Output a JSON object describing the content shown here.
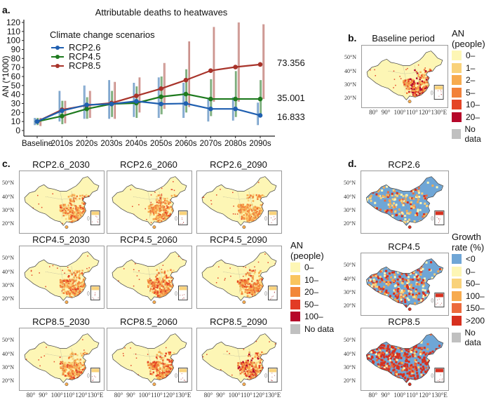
{
  "panels": {
    "a": {
      "letter": "a.",
      "end_labels": [
        "73.356",
        "35.001",
        "16.833"
      ]
    },
    "b": {
      "letter": "b.",
      "title": "Baseline period",
      "legend_title_1": "AN",
      "legend_title_2": "(people)",
      "legend": [
        {
          "label": "0–",
          "color": "#fdf6b5"
        },
        {
          "label": "1–",
          "color": "#f9d27a"
        },
        {
          "label": "2–",
          "color": "#f7ab4f"
        },
        {
          "label": "5–",
          "color": "#f2813a"
        },
        {
          "label": "10–",
          "color": "#e44526"
        },
        {
          "label": "20–",
          "color": "#b6072a"
        },
        {
          "label": "No data",
          "color": "#c0c0c0"
        }
      ]
    },
    "c": {
      "letter": "c.",
      "maps": [
        {
          "title": "RCP2.6_2030",
          "intensity": 0.55
        },
        {
          "title": "RCP2.6_2060",
          "intensity": 0.55
        },
        {
          "title": "RCP2.6_2090",
          "intensity": 0.5
        },
        {
          "title": "RCP4.5_2030",
          "intensity": 0.6
        },
        {
          "title": "RCP4.5_2060",
          "intensity": 0.65
        },
        {
          "title": "RCP4.5_2090",
          "intensity": 0.65
        },
        {
          "title": "RCP8.5_2030",
          "intensity": 0.6
        },
        {
          "title": "RCP8.5_2060",
          "intensity": 0.7
        },
        {
          "title": "RCP8.5_2090",
          "intensity": 0.8
        }
      ],
      "legend_title_1": "AN",
      "legend_title_2": "(people)",
      "legend": [
        {
          "label": "0–",
          "color": "#fdf6b5"
        },
        {
          "label": "10–",
          "color": "#f9c55f"
        },
        {
          "label": "20–",
          "color": "#f2873a"
        },
        {
          "label": "50–",
          "color": "#e23b25"
        },
        {
          "label": "100–",
          "color": "#b6072a"
        },
        {
          "label": "No data",
          "color": "#c0c0c0"
        }
      ]
    },
    "d": {
      "letter": "d.",
      "maps": [
        {
          "title": "RCP2.6",
          "red_share": 0.2
        },
        {
          "title": "RCP4.5",
          "red_share": 0.45
        },
        {
          "title": "RCP8.5",
          "red_share": 0.7
        }
      ],
      "legend_title_1": "Growth",
      "legend_title_2": "rate (%)",
      "legend": [
        {
          "label": "<0",
          "color": "#6fa6d6"
        },
        {
          "label": "0–",
          "color": "#fdf6b5"
        },
        {
          "label": "50–",
          "color": "#f9d27a"
        },
        {
          "label": "100–",
          "color": "#f7ab4f"
        },
        {
          "label": "150–",
          "color": "#ec6a3c"
        },
        {
          "label": ">200",
          "color": "#d7301f"
        },
        {
          "label": "No data",
          "color": "#c0c0c0"
        }
      ]
    },
    "map_axes": {
      "lat_ticks": [
        "50°N",
        "40°N",
        "30°N",
        "20°N"
      ],
      "lon_ticks": [
        "80°",
        "90°",
        "100°",
        "110°",
        "120°",
        "130°E"
      ]
    }
  },
  "chart_data": {
    "type": "line",
    "title": "Attributable deaths to heatwaves",
    "xlabel": "",
    "ylabel": "AN (*1000)",
    "ylim": [
      0,
      120
    ],
    "yticks": [
      0,
      10,
      20,
      30,
      40,
      50,
      60,
      70,
      80,
      90,
      100,
      110,
      120
    ],
    "grid": false,
    "legend_title": "Climate change scenarios",
    "legend_position": "top-left",
    "categories": [
      "Baseline",
      "2010s",
      "2020s",
      "2030s",
      "2040s",
      "2050s",
      "2060s",
      "2070s",
      "2080s",
      "2090s"
    ],
    "series": [
      {
        "name": "RCP2.6",
        "color": "#1f5fb0",
        "values": [
          10,
          22,
          28.5,
          29.5,
          32.5,
          29.5,
          30,
          24,
          24,
          16.833
        ],
        "error_low": [
          6,
          10,
          13,
          13,
          15,
          14,
          14,
          10,
          11,
          6
        ],
        "error_high": [
          14,
          44,
          50,
          56,
          53,
          59,
          53,
          36,
          37,
          31
        ]
      },
      {
        "name": "RCP4.5",
        "color": "#1e7a1e",
        "values": [
          10,
          16,
          24,
          29.5,
          30.5,
          37.5,
          40.5,
          35,
          35,
          35.001
        ],
        "error_low": [
          6,
          7,
          13,
          15,
          14,
          18,
          20,
          16,
          15,
          15
        ],
        "error_high": [
          14,
          33,
          37,
          44,
          49,
          60,
          68,
          57,
          66,
          56
        ]
      },
      {
        "name": "RCP8.5",
        "color": "#a8332a",
        "values": [
          10,
          23,
          28,
          30.5,
          38.5,
          46.5,
          56,
          66.5,
          70.5,
          73.356
        ],
        "error_low": [
          5,
          8,
          14,
          13,
          20,
          24,
          26,
          32,
          32,
          35
        ],
        "error_high": [
          14,
          33,
          44,
          54,
          59,
          75,
          99,
          115,
          120,
          118
        ]
      }
    ],
    "annotations": [
      "73.356",
      "35.001",
      "16.833"
    ]
  }
}
